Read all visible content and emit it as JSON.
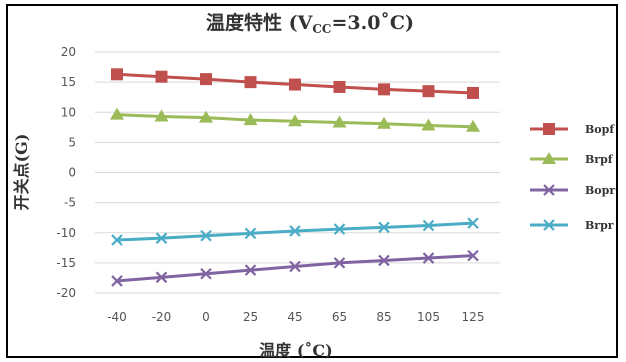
{
  "chart_data": {
    "type": "line",
    "title_main": "温度特性 (V",
    "title_sub": "CC",
    "title_tail": "=3.0˚C)",
    "xlabel": "温度 (˚C)",
    "ylabel": "开关点(G)",
    "categories": [
      "-40",
      "-20",
      "0",
      "25",
      "45",
      "65",
      "85",
      "105",
      "125"
    ],
    "ylim": [
      -20,
      20
    ],
    "yticks": [
      20,
      15,
      10,
      5,
      0,
      -5,
      -10,
      -15,
      -20
    ],
    "grid": true,
    "legend_position": "right",
    "series": [
      {
        "name": "Bopf",
        "color": "#c0504d",
        "marker": "square",
        "values": [
          16.3,
          15.9,
          15.5,
          15.0,
          14.6,
          14.2,
          13.8,
          13.5,
          13.2
        ]
      },
      {
        "name": "Brpf",
        "color": "#9bbb59",
        "marker": "triangle",
        "values": [
          9.6,
          9.3,
          9.1,
          8.7,
          8.5,
          8.3,
          8.1,
          7.8,
          7.6
        ]
      },
      {
        "name": "Bopr",
        "color": "#8064a2",
        "marker": "x",
        "values": [
          -18.0,
          -17.4,
          -16.8,
          -16.2,
          -15.6,
          -15.0,
          -14.6,
          -14.2,
          -13.8
        ]
      },
      {
        "name": "Brpr",
        "color": "#4bacc6",
        "marker": "x",
        "values": [
          -11.2,
          -10.9,
          -10.5,
          -10.1,
          -9.7,
          -9.4,
          -9.1,
          -8.8,
          -8.4
        ]
      }
    ]
  }
}
